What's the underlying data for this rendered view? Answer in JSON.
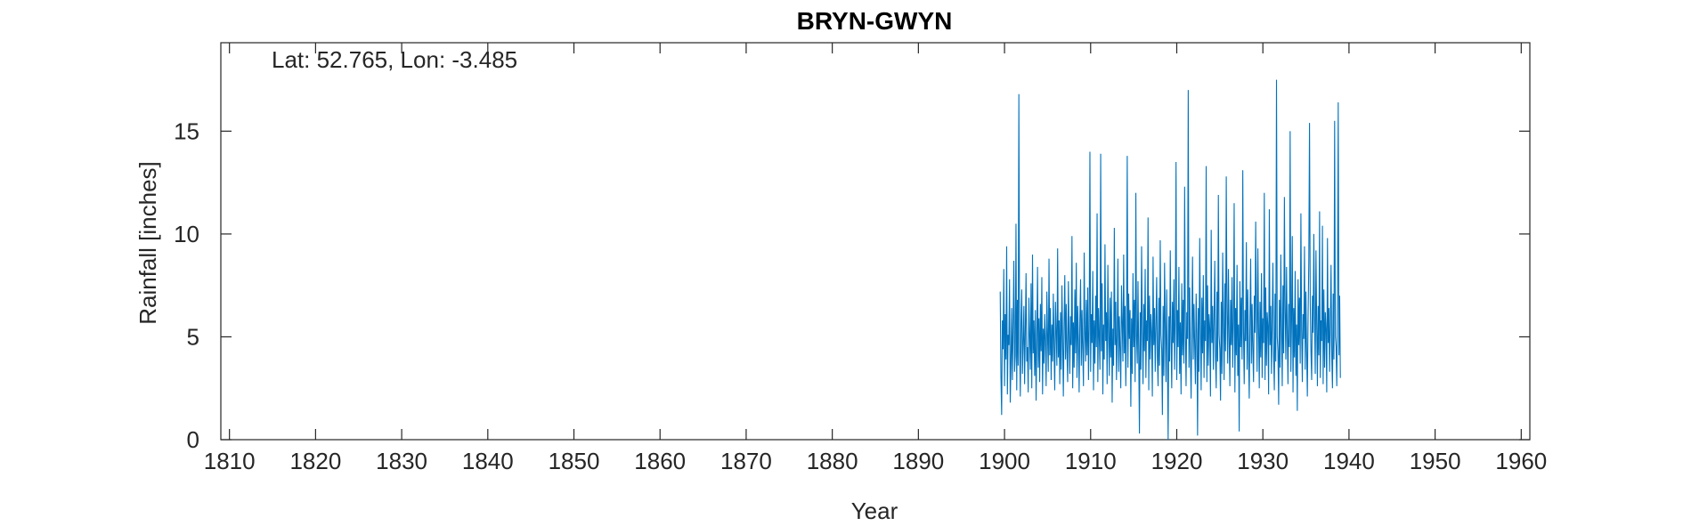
{
  "chart_data": {
    "type": "line",
    "title": "BRYN-GWYN",
    "annotation": "Lat: 52.765, Lon: -3.485",
    "xlabel": "Year",
    "ylabel": "Rainfall [inches]",
    "xlim": [
      1809,
      1961
    ],
    "ylim": [
      0,
      19.3
    ],
    "xticks": [
      1810,
      1820,
      1830,
      1840,
      1850,
      1860,
      1870,
      1880,
      1890,
      1900,
      1910,
      1920,
      1930,
      1940,
      1950,
      1960
    ],
    "yticks": [
      0,
      5,
      10,
      15
    ],
    "grid": false,
    "line_color": "#0072BD",
    "series": [
      {
        "x_start": 1899.5,
        "x_step_months": 1,
        "values": [
          7.2,
          3.1,
          1.2,
          5.8,
          4.4,
          8.3,
          2.6,
          6.1,
          3.9,
          9.4,
          2.2,
          5.1,
          4.6,
          7.8,
          1.8,
          3.7,
          6.4,
          2.9,
          5.5,
          8.7,
          3.3,
          4.1,
          10.5,
          2.4,
          6.8,
          3.6,
          16.8,
          4.9,
          2.1,
          5.7,
          7.3,
          3.2,
          4.8,
          6.5,
          2.7,
          5.3,
          8.1,
          3.8,
          4.5,
          2.3,
          6.9,
          5.1,
          3.4,
          7.6,
          2.5,
          9.0,
          4.2,
          5.8,
          3.1,
          6.3,
          1.9,
          4.7,
          8.4,
          3.5,
          5.9,
          2.8,
          6.6,
          4.3,
          7.9,
          2.2,
          5.4,
          3.7,
          6.1,
          4.8,
          2.6,
          7.2,
          5.0,
          3.3,
          8.8,
          4.1,
          6.4,
          2.9,
          5.6,
          3.8,
          7.1,
          4.5,
          2.4,
          6.7,
          5.2,
          3.6,
          9.3,
          4.0,
          5.8,
          2.7,
          6.2,
          3.4,
          7.5,
          4.9,
          2.1,
          5.5,
          8.0,
          3.9,
          6.6,
          4.3,
          2.8,
          7.7,
          5.1,
          3.2,
          6.0,
          4.6,
          9.9,
          2.5,
          5.7,
          3.5,
          7.3,
          4.2,
          8.6,
          3.0,
          6.5,
          4.8,
          2.3,
          5.9,
          7.8,
          3.6,
          6.3,
          4.4,
          2.6,
          9.1,
          5.3,
          3.8,
          6.8,
          4.1,
          7.4,
          2.9,
          5.5,
          14.0,
          3.3,
          6.1,
          4.7,
          8.2,
          2.4,
          5.8,
          3.7,
          7.0,
          4.5,
          11.0,
          2.8,
          6.4,
          5.0,
          3.4,
          13.9,
          4.3,
          7.6,
          2.2,
          5.6,
          3.9,
          9.5,
          4.8,
          6.2,
          2.7,
          8.5,
          5.2,
          3.1,
          6.9,
          4.0,
          7.2,
          1.8,
          5.4,
          3.6,
          10.3,
          4.6,
          6.7,
          2.9,
          5.1,
          8.8,
          3.3,
          6.0,
          4.4,
          2.5,
          7.5,
          5.7,
          3.8,
          9.0,
          4.2,
          6.5,
          2.6,
          5.3,
          13.8,
          3.5,
          7.1,
          4.9,
          6.3,
          1.6,
          5.9,
          3.2,
          8.1,
          4.5,
          6.8,
          2.8,
          12.0,
          5.0,
          3.7,
          7.7,
          4.1,
          0.3,
          6.2,
          3.4,
          9.4,
          5.5,
          2.7,
          6.6,
          4.3,
          8.3,
          3.0,
          5.8,
          4.8,
          10.8,
          2.4,
          7.0,
          3.9,
          6.1,
          5.2,
          2.1,
          8.9,
          4.6,
          6.4,
          3.3,
          5.6,
          7.9,
          4.0,
          2.6,
          6.9,
          3.6,
          9.7,
          5.1,
          4.4,
          1.2,
          6.5,
          3.1,
          8.6,
          5.4,
          2.8,
          7.3,
          4.2,
          0.0,
          6.0,
          3.8,
          9.2,
          5.0,
          2.5,
          6.7,
          4.7,
          7.8,
          3.4,
          5.9,
          13.5,
          2.9,
          6.3,
          4.5,
          8.4,
          3.2,
          5.7,
          2.2,
          7.6,
          4.1,
          6.8,
          3.7,
          12.3,
          5.3,
          2.6,
          6.2,
          4.9,
          17.0,
          3.5,
          7.4,
          4.3,
          2.0,
          5.5,
          8.9,
          3.9,
          6.6,
          4.6,
          2.7,
          7.1,
          5.2,
          0.2,
          6.4,
          3.3,
          9.8,
          5.6,
          2.4,
          6.9,
          4.2,
          8.0,
          3.0,
          5.8,
          4.8,
          13.3,
          2.8,
          7.5,
          3.6,
          6.1,
          5.4,
          2.1,
          10.2,
          4.7,
          6.5,
          3.4,
          5.9,
          8.7,
          4.0,
          2.5,
          7.2,
          3.8,
          11.9,
          5.1,
          4.4,
          1.9,
          6.7,
          3.2,
          9.1,
          5.5,
          2.9,
          7.6,
          4.3,
          12.8,
          6.2,
          3.7,
          8.3,
          5.0,
          2.6,
          6.8,
          4.6,
          7.9,
          3.5,
          5.7,
          11.5,
          2.3,
          6.4,
          4.1,
          8.5,
          3.1,
          5.6,
          0.4,
          7.7,
          4.5,
          6.9,
          3.9,
          13.1,
          5.3,
          2.7,
          6.3,
          4.8,
          9.6,
          3.4,
          7.3,
          4.2,
          2.0,
          5.8,
          8.8,
          3.7,
          6.6,
          4.4,
          2.8,
          7.0,
          5.2,
          10.6,
          6.1,
          3.3,
          9.3,
          5.6,
          2.5,
          6.7,
          4.0,
          8.1,
          3.0,
          5.9,
          4.7,
          12.0,
          2.9,
          7.4,
          3.6,
          6.2,
          5.5,
          2.2,
          11.2,
          4.6,
          6.5,
          3.2,
          5.7,
          8.6,
          4.1,
          2.4,
          7.1,
          3.8,
          17.5,
          5.0,
          4.3,
          1.7,
          6.8,
          3.5,
          9.0,
          5.4,
          2.6,
          7.5,
          4.2,
          11.8,
          6.3,
          3.9,
          8.4,
          5.1,
          2.7,
          6.6,
          4.5,
          15.0,
          3.3,
          5.8,
          9.9,
          2.3,
          6.4,
          4.0,
          8.2,
          3.1,
          5.6,
          1.4,
          7.8,
          4.6,
          6.9,
          3.7,
          11.0,
          5.3,
          2.8,
          6.1,
          4.9,
          9.4,
          3.4,
          7.2,
          4.4,
          2.1,
          5.9,
          8.7,
          15.4,
          6.7,
          4.3,
          2.9,
          7.0,
          5.2,
          10.0,
          6.0,
          3.2,
          9.2,
          5.7,
          2.6,
          6.5,
          4.1,
          11.1,
          3.0,
          5.8,
          4.8,
          10.4,
          2.7,
          7.3,
          3.5,
          6.2,
          5.4,
          2.3,
          9.8,
          4.7,
          6.4,
          3.3,
          5.6,
          8.5,
          4.0,
          2.5,
          7.1,
          3.9,
          15.5,
          5.0,
          4.5,
          2.6,
          6.8,
          16.4,
          4.1,
          7.0,
          3.0
        ]
      }
    ]
  }
}
